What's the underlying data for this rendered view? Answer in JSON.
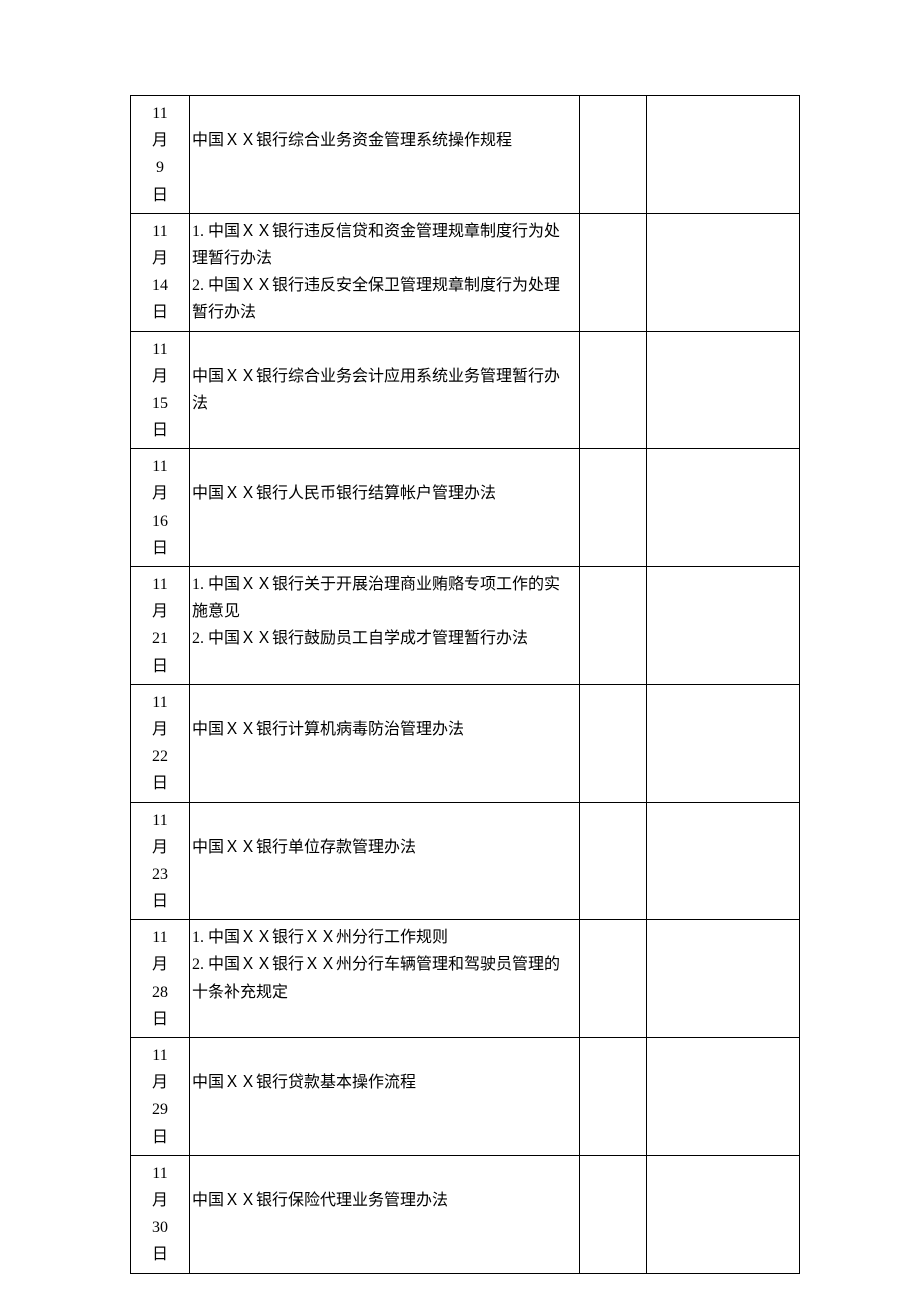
{
  "rows": [
    {
      "date": [
        "11",
        "月",
        "9",
        "日"
      ],
      "content": "\n中国ＸＸ银行综合业务资金管理系统操作规程"
    },
    {
      "date": [
        "11",
        "月",
        "14",
        "日"
      ],
      "content": "1. 中国ＸＸ银行违反信贷和资金管理规章制度行为处理暂行办法\n2. 中国ＸＸ银行违反安全保卫管理规章制度行为处理暂行办法"
    },
    {
      "date": [
        "11",
        "月",
        "15",
        "日"
      ],
      "content": "\n中国ＸＸ银行综合业务会计应用系统业务管理暂行办法"
    },
    {
      "date": [
        "11",
        "月",
        "16",
        "日"
      ],
      "content": "\n中国ＸＸ银行人民币银行结算帐户管理办法"
    },
    {
      "date": [
        "11",
        "月",
        "21",
        "日"
      ],
      "content": "1. 中国ＸＸ银行关于开展治理商业贿赂专项工作的实施意见\n2. 中国ＸＸ银行鼓励员工自学成才管理暂行办法"
    },
    {
      "date": [
        "11",
        "月",
        "22",
        "日"
      ],
      "content": "\n中国ＸＸ银行计算机病毒防治管理办法"
    },
    {
      "date": [
        "11",
        "月",
        "23",
        "日"
      ],
      "content": "\n中国ＸＸ银行单位存款管理办法"
    },
    {
      "date": [
        "11",
        "月",
        "28",
        "日"
      ],
      "content": "1. 中国ＸＸ银行ＸＸ州分行工作规则\n2. 中国ＸＸ银行ＸＸ州分行车辆管理和驾驶员管理的十条补充规定"
    },
    {
      "date": [
        "11",
        "月",
        "29",
        "日"
      ],
      "content": "\n中国ＸＸ银行贷款基本操作流程"
    },
    {
      "date": [
        "11",
        "月",
        "30",
        "日"
      ],
      "content": "\n中国ＸＸ银行保险代理业务管理办法"
    }
  ]
}
